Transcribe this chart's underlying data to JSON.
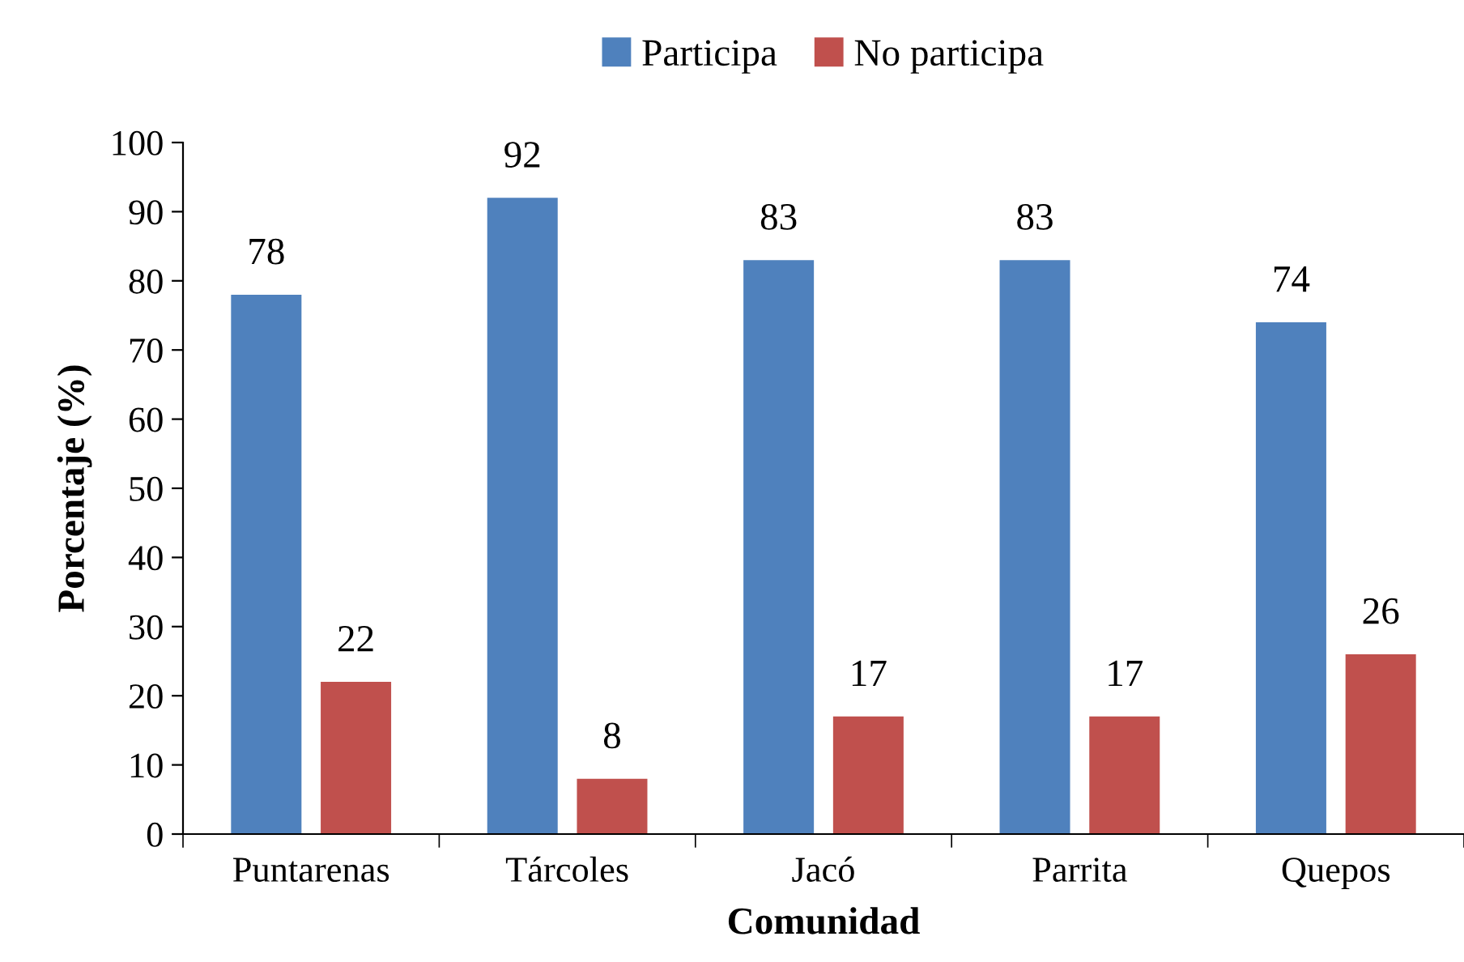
{
  "chart_data": {
    "type": "bar",
    "xlabel": "Comunidad",
    "ylabel": "Porcentaje (%)",
    "categories": [
      "Puntarenas",
      "Tárcoles",
      "Jacó",
      "Parrita",
      "Quepos"
    ],
    "series": [
      {
        "name": "Participa",
        "color": "#4f81bd",
        "values": [
          78,
          92,
          83,
          83,
          74
        ]
      },
      {
        "name": "No participa",
        "color": "#c0504d",
        "values": [
          22,
          8,
          17,
          17,
          26
        ]
      }
    ],
    "ylim": [
      0,
      100
    ],
    "yticks": [
      0,
      10,
      20,
      30,
      40,
      50,
      60,
      70,
      80,
      90,
      100
    ],
    "data_labels": true,
    "legend": "top",
    "grid": false
  }
}
